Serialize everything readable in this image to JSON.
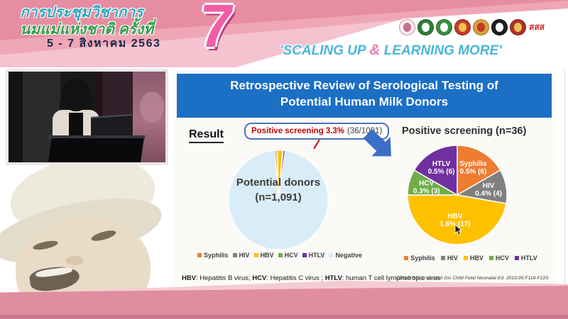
{
  "colors": {
    "banner_pink": "#efa6b6",
    "title_bar_blue": "#1b6fc4",
    "highlight_red": "#c00000",
    "arrow_blue": "#3b6fc6",
    "bottom_band_pink": "#e18da0",
    "slogan_blue": "#4ab5d8",
    "slogan_amp_pink": "#e97fb6"
  },
  "banner": {
    "title_line1": "การประชุมวิชาการ",
    "title_line2": "นมแม่แห่งชาติ ครั้งที่",
    "date_line": "5 - 7 สิงหาคม 2563",
    "edition_number": "7",
    "slogan": {
      "part1": "'SCALING UP ",
      "amp": "&",
      "part2": " LEARNING MORE'"
    },
    "logos": [
      {
        "name": "breastfeeding-foundation-logo",
        "bg": "#fbeef1",
        "border": "#d489a0",
        "dot": "#c96f8d"
      },
      {
        "name": "health-department-logo",
        "bg": "#2e7d36",
        "border": "#1d5a24",
        "dot": "#ffffff"
      },
      {
        "name": "public-health-ministry-logo",
        "bg": "#3c8c42",
        "border": "#276b2c",
        "dot": "#ffffff"
      },
      {
        "name": "university-crest-logo",
        "bg": "#c43b2a",
        "border": "#8e2418",
        "dot": "#f2c14e"
      },
      {
        "name": "royal-college-logo",
        "bg": "#d9a03c",
        "border": "#a8702a",
        "dot": "#c0392b"
      },
      {
        "name": "medical-society-logo",
        "bg": "#1f1f1f",
        "border": "#000000",
        "dot": "#ffffff"
      },
      {
        "name": "royal-thai-college-logo",
        "bg": "#b03028",
        "border": "#7d1f1a",
        "dot": "#e8c15a"
      },
      {
        "name": "thai-health-sss-logo",
        "bg": "#ffffff",
        "border": "#ffffff",
        "text": "สสส",
        "fg": "#d02c2c"
      }
    ]
  },
  "slide": {
    "title": "Retrospective Review of Serological Testing of Potential Human Milk Donors",
    "result_label": "Result",
    "callout": {
      "highlight": "Positive screening 3.3%",
      "detail": "(36/1091)"
    },
    "footnote_parts": [
      {
        "text": "HBV",
        "bold": true
      },
      {
        "text": ": Hepatitis B virus; ",
        "bold": false
      },
      {
        "text": "HCV",
        "bold": true
      },
      {
        "text": ": Hepatitis C virus ; ",
        "bold": false
      },
      {
        "text": "HTLV",
        "bold": true
      },
      {
        "text": ": human T cell lymphotropic virus",
        "bold": false
      }
    ],
    "citation": "Cohen RS, et al. Arch Dis Child Fetal Neonatal Ed. 2010;95:F118-F120."
  },
  "chart_data": [
    {
      "type": "pie",
      "title": "Potential donors (n=1,091)",
      "center_label_line1": "Potential donors",
      "center_label_line2": "(n=1,091)",
      "total": 1091,
      "start_angle_deg": -4,
      "legend_position": "bottom",
      "slices": [
        {
          "label": "Syphilis",
          "value": 6,
          "color": "#ed7d31"
        },
        {
          "label": "HIV",
          "value": 4,
          "color": "#7f7f7f"
        },
        {
          "label": "HBV",
          "value": 17,
          "color": "#ffc000"
        },
        {
          "label": "HCV",
          "value": 3,
          "color": "#70ad47"
        },
        {
          "label": "HTLV",
          "value": 6,
          "color": "#7030a0"
        },
        {
          "label": "Negative",
          "value": 1055,
          "color": "#d9edf8"
        }
      ]
    },
    {
      "type": "pie",
      "title": "Positive screening (n=36)",
      "total": 36,
      "start_angle_deg": 0,
      "legend_position": "bottom",
      "slices": [
        {
          "label": "Syphilis",
          "value": 6,
          "pct_label": "0.5% (6)",
          "color": "#ed7d31"
        },
        {
          "label": "HIV",
          "value": 4,
          "pct_label": "0.4% (4)",
          "color": "#7f7f7f"
        },
        {
          "label": "HBV",
          "value": 17,
          "pct_label": "1.6% (17)",
          "color": "#ffc000"
        },
        {
          "label": "HCV",
          "value": 3,
          "pct_label": "0.3% (3)",
          "color": "#70ad47"
        },
        {
          "label": "HTLV",
          "value": 6,
          "pct_label": "0.5% (6)",
          "color": "#7030a0"
        }
      ]
    }
  ]
}
